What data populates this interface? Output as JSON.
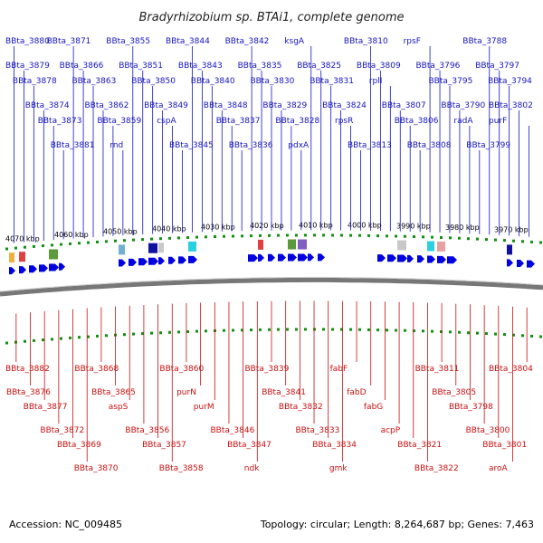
{
  "title": "Bradyrhizobium sp. BTAi1, complete genome",
  "footer": {
    "accession": "Accession: NC_009485",
    "topology": "Topology: circular; Length: 8,264,687 bp; Genes: 7,463"
  },
  "colors": {
    "forward": "#0000e0",
    "reverse": "#ee0000",
    "tick": "#129012",
    "backbone": "#777777",
    "label_forward": "#1515c0",
    "label_reverse": "#c81010"
  },
  "scale_labels": [
    "4070 kbp",
    "4060 kbp",
    "4050 kbp",
    "4040 kbp",
    "4030 kbp",
    "4020 kbp",
    "4010 kbp",
    "4000 kbp",
    "3990 kbp",
    "3980 kbp",
    "3970 kbp"
  ],
  "top_labels": [
    "BBta_3880",
    "BBta_3879",
    "BBta_3878",
    "BBta_3874",
    "BBta_3873",
    "BBta_3881",
    "BBta_3871",
    "BBta_3866",
    "BBta_3863",
    "BBta_3862",
    "BBta_3859",
    "rnd",
    "BBta_3855",
    "BBta_3851",
    "BBta_3850",
    "BBta_3849",
    "cspA",
    "BBta_3845",
    "BBta_3844",
    "BBta_3843",
    "BBta_3840",
    "BBta_3848",
    "BBta_3837",
    "BBta_3836",
    "BBta_3842",
    "BBta_3835",
    "BBta_3830",
    "BBta_3829",
    "BBta_3828",
    "pdxA",
    "ksgA",
    "BBta_3825",
    "BBta_3831",
    "BBta_3824",
    "rpsR",
    "BBta_3813",
    "BBta_3810",
    "BBta_3809",
    "rplI",
    "BBta_3807",
    "BBta_3806",
    "BBta_3808",
    "rpsF",
    "BBta_3796",
    "BBta_3795",
    "BBta_3790",
    "radA",
    "BBta_3799",
    "BBta_3788",
    "BBta_3797",
    "BBta_3794",
    "BBta_3802",
    "purF"
  ],
  "bottom_labels": [
    "BBta_3882",
    "BBta_3876",
    "BBta_3877",
    "BBta_3872",
    "BBta_3869",
    "BBta_3870",
    "BBta_3868",
    "BBta_3865",
    "aspS",
    "BBta_3856",
    "BBta_3857",
    "BBta_3858",
    "BBta_3860",
    "purN",
    "purM",
    "BBta_3846",
    "BBta_3847",
    "ndk",
    "BBta_3839",
    "BBta_3841",
    "BBta_3832",
    "BBta_3833",
    "BBta_3834",
    "gmk",
    "fabF",
    "fabD",
    "fabG",
    "acpP",
    "BBta_3821",
    "BBta_3822",
    "BBta_3811",
    "BBta_3805",
    "BBta_3798",
    "BBta_3800",
    "BBta_3801",
    "aroA",
    "BBta_3804"
  ]
}
